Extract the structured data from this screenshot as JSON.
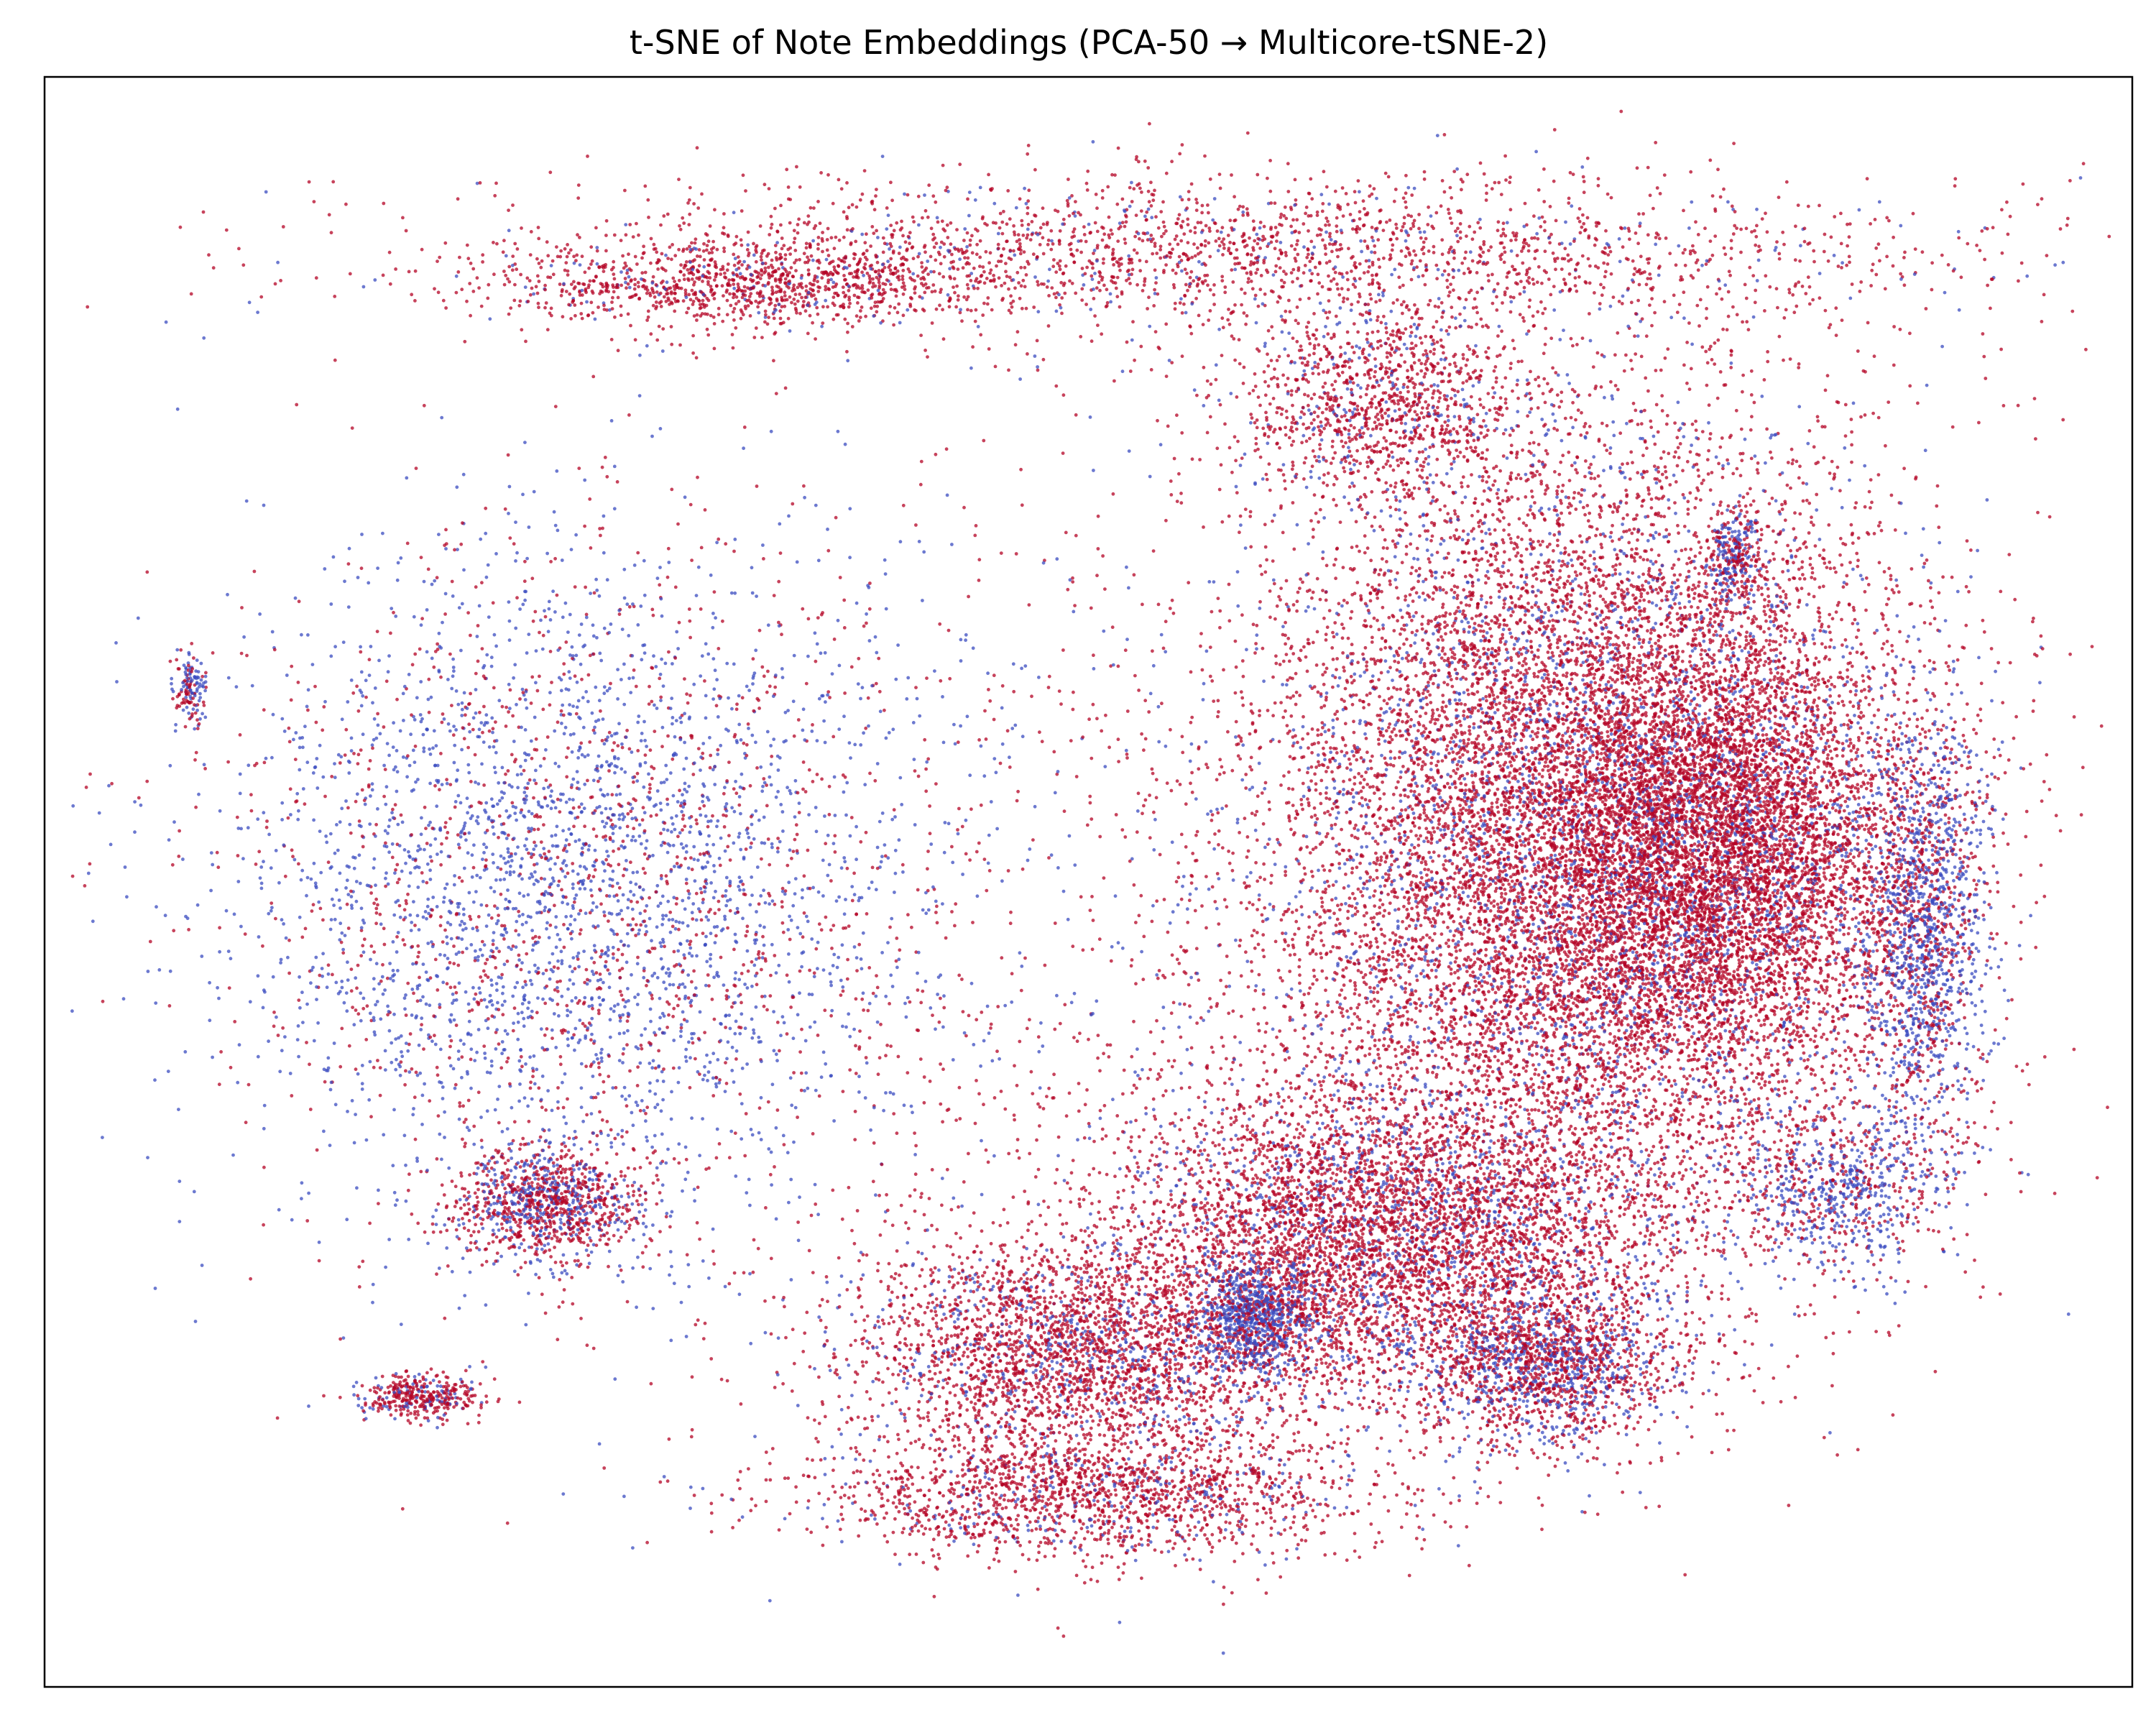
{
  "chart_data": {
    "type": "scatter",
    "title": "t-SNE of Note Embeddings (PCA-50 → Multicore-tSNE-2)",
    "xlabel": "",
    "ylabel": "",
    "ticks": false,
    "grid": false,
    "legend": "none",
    "marker_size": "tiny",
    "colormap": [
      "#3b4cc0",
      "#b40426"
    ],
    "colors": {
      "blue": "#3b4cc0",
      "red": "#b40426",
      "frame": "#000000",
      "background": "#ffffff"
    },
    "series": [
      {
        "color_group": "red-dominant regions",
        "clusters": [
          {
            "cx": 0.55,
            "cy": 0.11,
            "rx": 0.35,
            "ry": 0.05,
            "count": 2400,
            "red_share": 0.88
          },
          {
            "cx": 0.33,
            "cy": 0.13,
            "rx": 0.11,
            "ry": 0.025,
            "count": 900,
            "red_share": 0.92
          },
          {
            "cx": 0.64,
            "cy": 0.2,
            "rx": 0.07,
            "ry": 0.06,
            "count": 1100,
            "red_share": 0.85
          },
          {
            "cx": 0.74,
            "cy": 0.47,
            "rx": 0.16,
            "ry": 0.26,
            "count": 14000,
            "red_share": 0.82
          },
          {
            "cx": 0.8,
            "cy": 0.48,
            "rx": 0.09,
            "ry": 0.13,
            "count": 5000,
            "red_share": 0.86
          },
          {
            "cx": 0.64,
            "cy": 0.72,
            "rx": 0.13,
            "ry": 0.1,
            "count": 5200,
            "red_share": 0.8
          },
          {
            "cx": 0.5,
            "cy": 0.79,
            "rx": 0.12,
            "ry": 0.07,
            "count": 3000,
            "red_share": 0.82
          },
          {
            "cx": 0.5,
            "cy": 0.88,
            "rx": 0.13,
            "ry": 0.04,
            "count": 1800,
            "red_share": 0.85
          },
          {
            "cx": 0.72,
            "cy": 0.8,
            "rx": 0.06,
            "ry": 0.05,
            "count": 1600,
            "red_share": 0.62
          },
          {
            "cx": 0.24,
            "cy": 0.7,
            "rx": 0.045,
            "ry": 0.035,
            "count": 1100,
            "red_share": 0.62
          },
          {
            "cx": 0.18,
            "cy": 0.82,
            "rx": 0.03,
            "ry": 0.015,
            "count": 380,
            "red_share": 0.78
          },
          {
            "cx": 0.46,
            "cy": 0.55,
            "rx": 0.33,
            "ry": 0.36,
            "count": 1400,
            "red_share": 0.72
          }
        ]
      },
      {
        "color_group": "blue-dominant regions",
        "clusters": [
          {
            "cx": 0.25,
            "cy": 0.5,
            "rx": 0.165,
            "ry": 0.2,
            "count": 3600,
            "red_share": 0.3
          },
          {
            "cx": 0.9,
            "cy": 0.53,
            "rx": 0.03,
            "ry": 0.13,
            "count": 1500,
            "red_share": 0.35
          },
          {
            "cx": 0.86,
            "cy": 0.69,
            "rx": 0.05,
            "ry": 0.05,
            "count": 700,
            "red_share": 0.4
          },
          {
            "cx": 0.58,
            "cy": 0.77,
            "rx": 0.025,
            "ry": 0.03,
            "count": 700,
            "red_share": 0.22
          },
          {
            "cx": 0.81,
            "cy": 0.3,
            "rx": 0.012,
            "ry": 0.03,
            "count": 260,
            "red_share": 0.4
          },
          {
            "cx": 0.07,
            "cy": 0.38,
            "rx": 0.008,
            "ry": 0.02,
            "count": 140,
            "red_share": 0.45
          }
        ]
      }
    ]
  }
}
